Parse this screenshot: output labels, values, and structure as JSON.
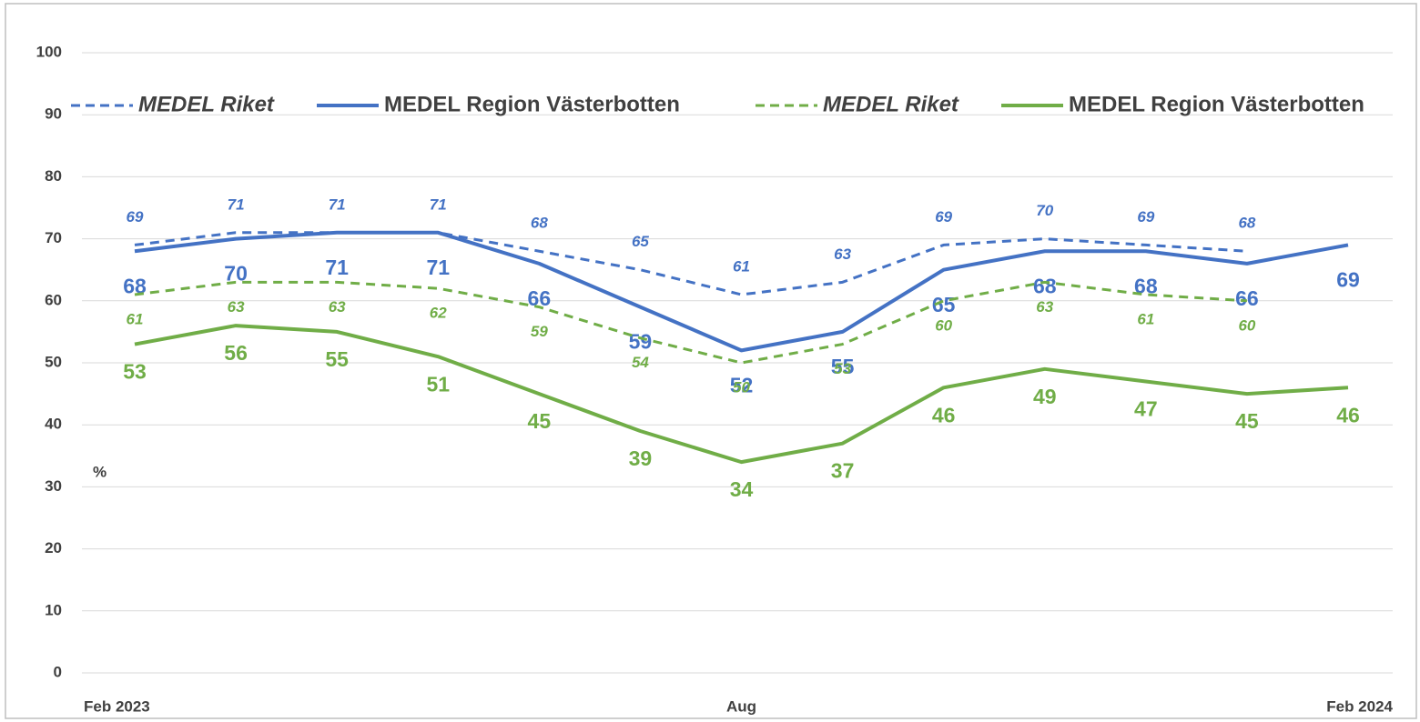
{
  "chart_data": {
    "type": "line",
    "categories": [
      "Feb 2023",
      null,
      null,
      null,
      null,
      null,
      "Aug",
      null,
      null,
      null,
      null,
      null,
      "Feb 2024"
    ],
    "ylabel": "%",
    "ylim": [
      0,
      100
    ],
    "yticks": [
      0,
      10,
      20,
      30,
      40,
      50,
      60,
      70,
      80,
      90,
      100
    ],
    "grid": true,
    "series": [
      {
        "name": "MEDEL Riket",
        "color": "#4472c4",
        "style": "dashed",
        "values": [
          69,
          71,
          71,
          71,
          68,
          65,
          61,
          63,
          69,
          70,
          69,
          68,
          null
        ]
      },
      {
        "name": "MEDEL Region Västerbotten",
        "color": "#4472c4",
        "style": "solid",
        "values": [
          68,
          70,
          71,
          71,
          66,
          59,
          52,
          55,
          65,
          68,
          68,
          66,
          69
        ]
      },
      {
        "name": "MEDEL Riket",
        "color": "#70ad47",
        "style": "dashed",
        "values": [
          61,
          63,
          63,
          62,
          59,
          54,
          50,
          53,
          60,
          63,
          61,
          60,
          null
        ]
      },
      {
        "name": "MEDEL Region Västerbotten",
        "color": "#70ad47",
        "style": "solid",
        "values": [
          53,
          56,
          55,
          51,
          45,
          39,
          34,
          37,
          46,
          49,
          47,
          45,
          46
        ]
      }
    ]
  }
}
